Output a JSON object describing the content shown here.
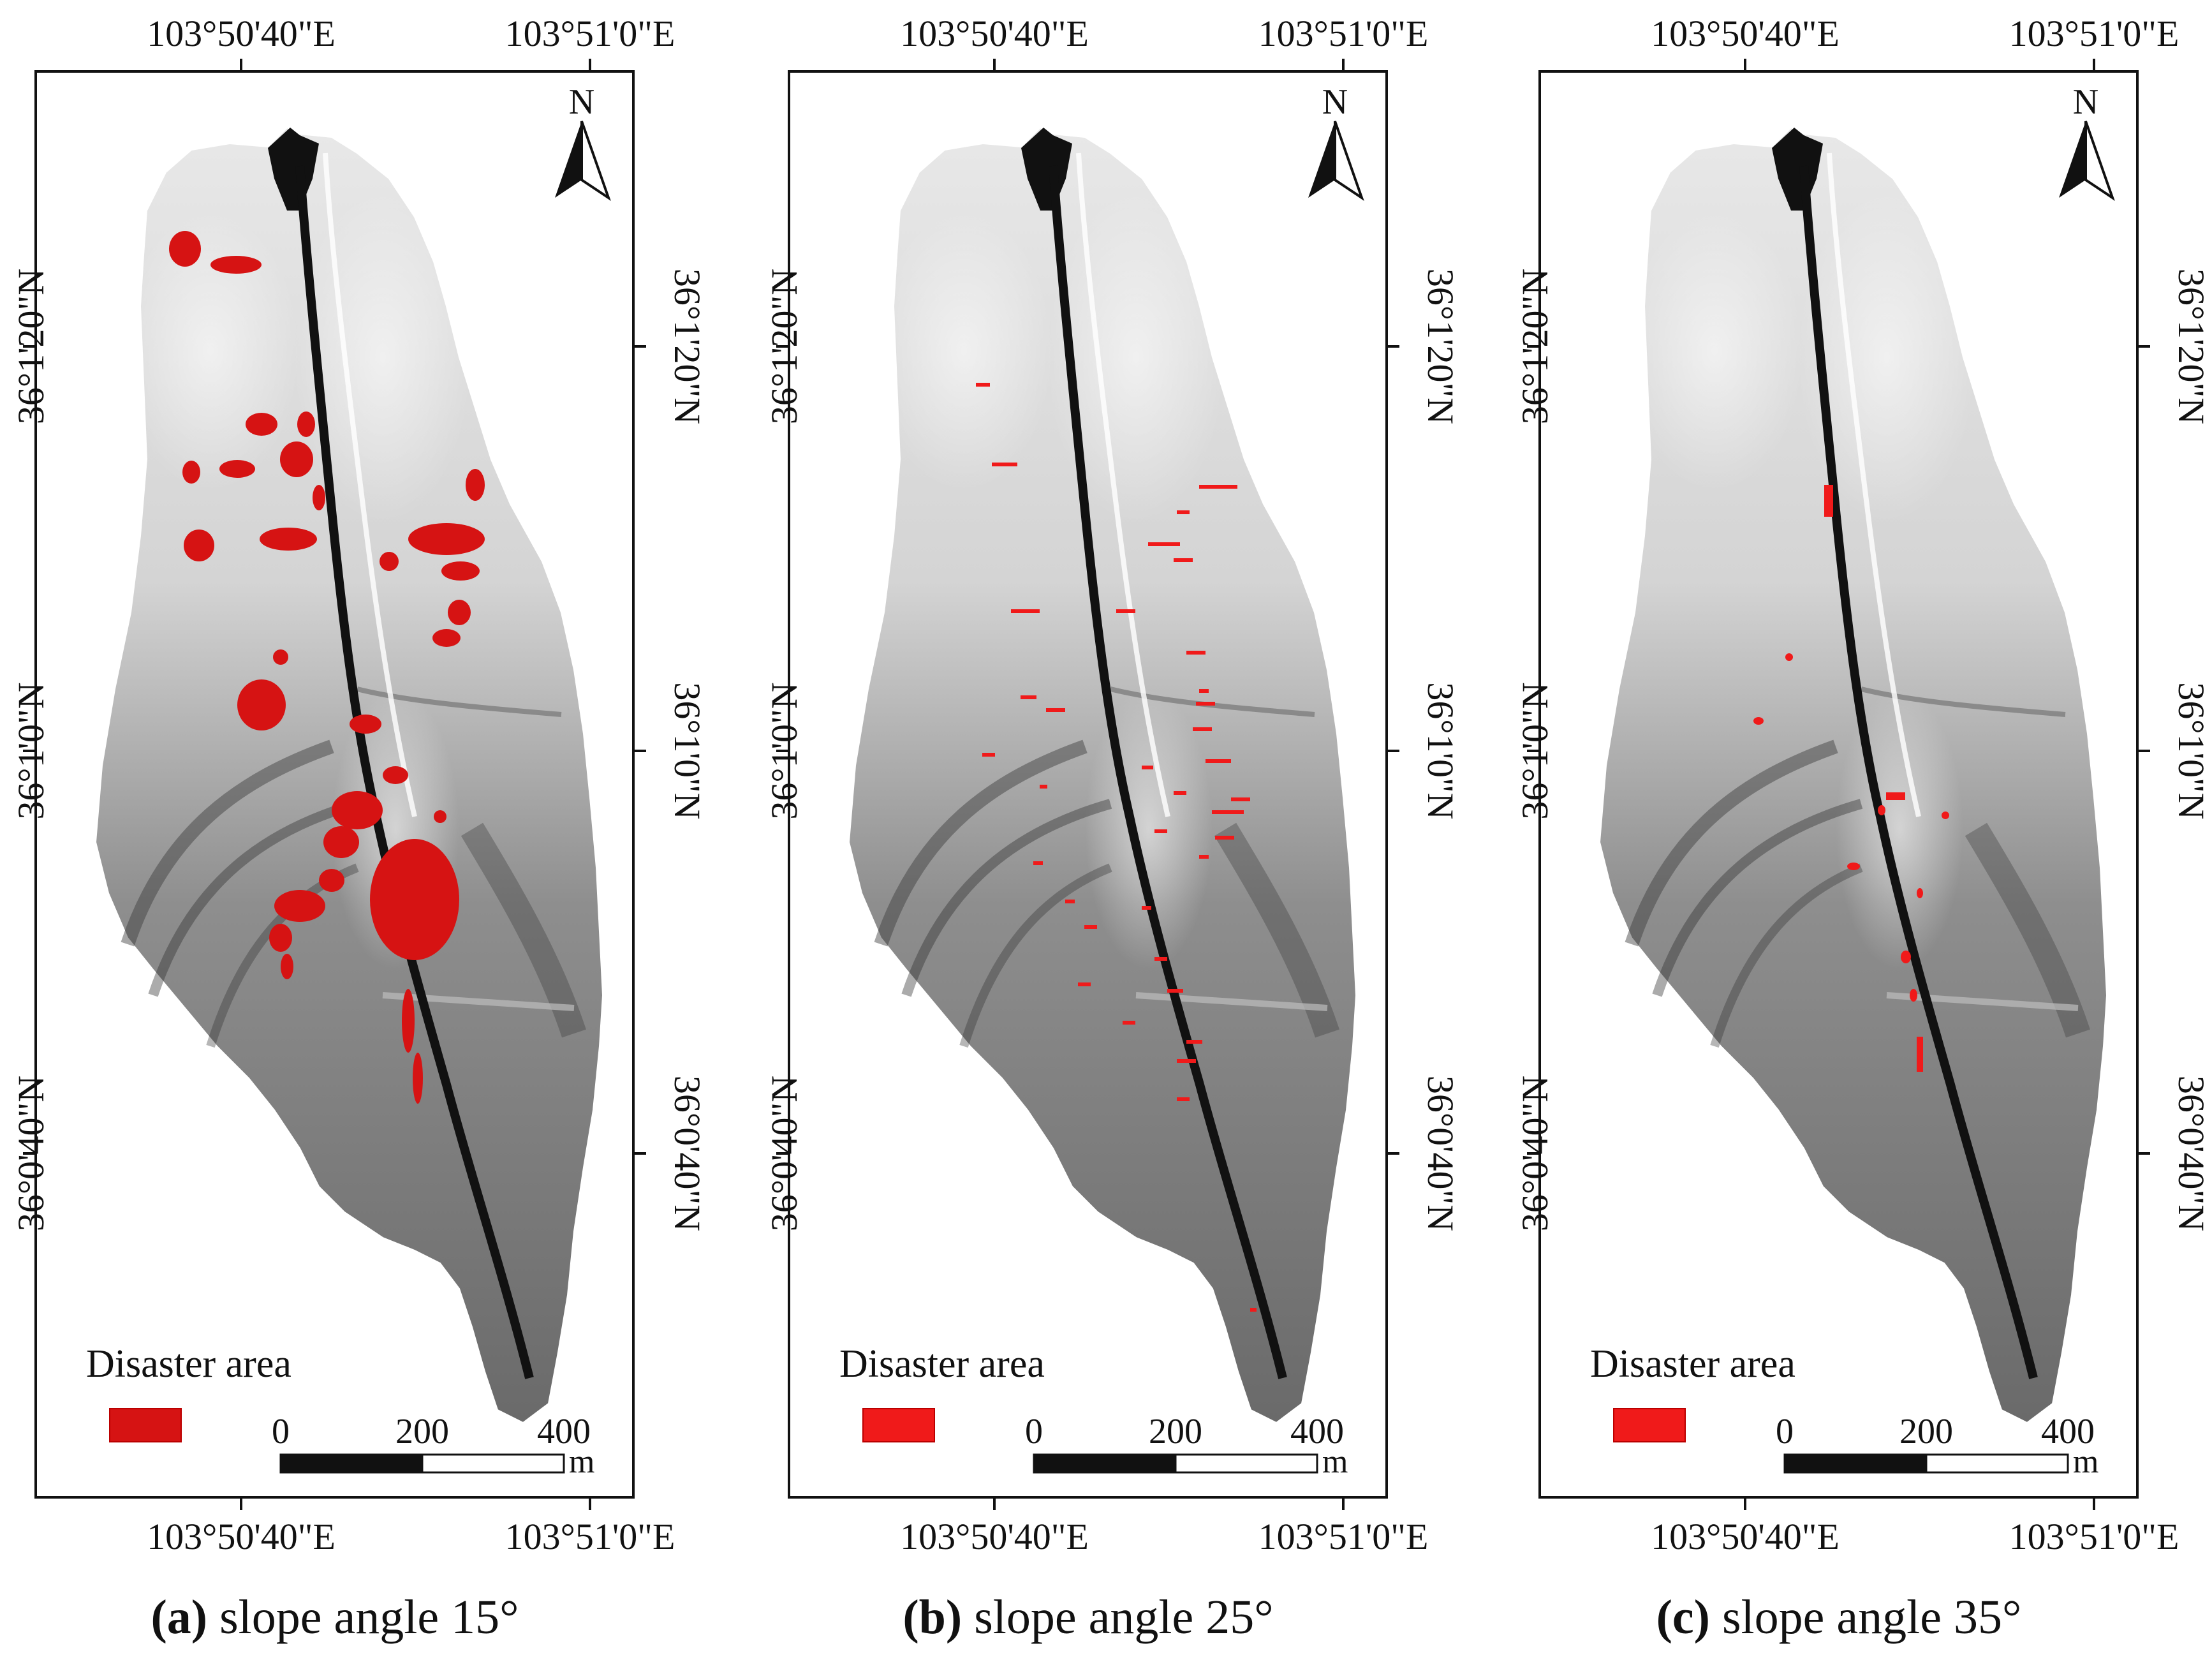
{
  "figure": {
    "panels": [
      {
        "id": "a",
        "caption_letter": "(a)",
        "caption_text": " slope angle 15°",
        "top_ticks": [
          "103°50'40\"E",
          "103°51'0\"E"
        ],
        "bottom_ticks": [
          "103°50'40\"E",
          "103°51'0\"E"
        ],
        "left_ticks": [
          "36°1'20\"N",
          "36°1'0\"N",
          "36°0'40\"N"
        ],
        "right_ticks": [
          "36°1'20\"N",
          "36°1'0\"N",
          "36°0'40\"N"
        ],
        "north_label": "N",
        "legend_label": "Disaster area",
        "legend_color": "#d61313",
        "scale_labels": [
          "0",
          "200",
          "400"
        ],
        "scale_unit": "m",
        "disaster_density": "large patches"
      },
      {
        "id": "b",
        "caption_letter": "(b)",
        "caption_text": " slope angle 25°",
        "top_ticks": [
          "103°50'40\"E",
          "103°51'0\"E"
        ],
        "bottom_ticks": [
          "103°50'40\"E",
          "103°51'0\"E"
        ],
        "left_ticks": [
          "36°1'20\"N",
          "36°1'0\"N",
          "36°0'40\"N"
        ],
        "right_ticks": [
          "36°1'20\"N",
          "36°1'0\"N",
          "36°0'40\"N"
        ],
        "north_label": "N",
        "legend_label": "Disaster area",
        "legend_color": "#f01a1a",
        "scale_labels": [
          "0",
          "200",
          "400"
        ],
        "scale_unit": "m",
        "disaster_density": "thin scattered strips"
      },
      {
        "id": "c",
        "caption_letter": "(c)",
        "caption_text": " slope angle 35°",
        "top_ticks": [
          "103°50'40\"E",
          "103°51'0\"E"
        ],
        "bottom_ticks": [
          "103°50'40\"E",
          "103°51'0\"E"
        ],
        "left_ticks": [
          "36°1'20\"N",
          "36°1'0\"N",
          "36°0'40\"N"
        ],
        "right_ticks": [
          "36°1'20\"N",
          "36°1'0\"N",
          "36°0'40\"N"
        ],
        "north_label": "N",
        "legend_label": "Disaster area",
        "legend_color": "#f01a1a",
        "scale_labels": [
          "0",
          "200",
          "400"
        ],
        "scale_unit": "m",
        "disaster_density": "few small spots"
      }
    ],
    "colors": {
      "terrain_light": "#e6e6e6",
      "terrain_mid": "#9a9a9a",
      "terrain_dark": "#555555",
      "channel": "#111111"
    }
  }
}
